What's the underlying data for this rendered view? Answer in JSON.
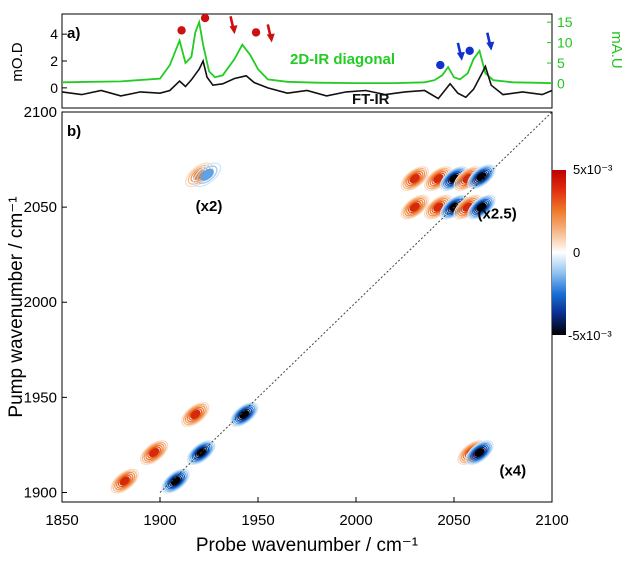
{
  "chart_data": [
    {
      "panel": "a)",
      "type": "line",
      "left_axis": {
        "label": "mO.D",
        "ticks": [
          0,
          2,
          4
        ],
        "range": [
          -1.5,
          5.5
        ]
      },
      "right_axis": {
        "label": "mA.U",
        "ticks": [
          0,
          5,
          10,
          15
        ],
        "range": [
          -6,
          17
        ],
        "color": "#22c422"
      },
      "x_axis": {
        "range": [
          1850,
          2100
        ],
        "shared_with": "b)"
      },
      "series": [
        {
          "name": "2D-IR diagonal",
          "axis": "right",
          "color": "#22cc22",
          "x": [
            1850,
            1880,
            1900,
            1905,
            1910,
            1913,
            1916,
            1918,
            1920,
            1922,
            1925,
            1928,
            1932,
            1938,
            1942,
            1946,
            1950,
            1955,
            1965,
            1980,
            2000,
            2020,
            2035,
            2040,
            2044,
            2047,
            2050,
            2053,
            2057,
            2060,
            2063,
            2066,
            2070,
            2080,
            2090,
            2100
          ],
          "y": [
            0.3,
            0.5,
            1.2,
            4.5,
            10.5,
            5.0,
            6.5,
            12.5,
            15.0,
            9.5,
            3.0,
            1.5,
            2.0,
            6.0,
            9.5,
            7.0,
            3.5,
            1.0,
            0.4,
            0.2,
            0.1,
            0.1,
            0.3,
            0.8,
            2.0,
            4.0,
            1.5,
            1.0,
            2.5,
            6.0,
            8.0,
            2.5,
            0.8,
            0.3,
            0.2,
            0.1
          ]
        },
        {
          "name": "FT-IR",
          "axis": "left",
          "color": "#111111",
          "x": [
            1850,
            1860,
            1870,
            1880,
            1890,
            1900,
            1905,
            1910,
            1913,
            1916,
            1920,
            1922,
            1924,
            1927,
            1932,
            1938,
            1944,
            1948,
            1955,
            1965,
            1975,
            1985,
            1995,
            2005,
            2015,
            2025,
            2035,
            2042,
            2048,
            2052,
            2056,
            2060,
            2064,
            2066,
            2069,
            2075,
            2085,
            2095,
            2100
          ],
          "y": [
            -0.3,
            -0.5,
            -0.2,
            -0.6,
            -0.3,
            -0.4,
            -0.2,
            0.5,
            0.1,
            0.6,
            1.4,
            2.0,
            0.8,
            0.2,
            0.3,
            0.7,
            0.9,
            0.4,
            0.0,
            -0.4,
            -0.2,
            -0.6,
            -0.3,
            -0.2,
            -0.5,
            -0.3,
            -0.2,
            -0.8,
            0.3,
            -0.4,
            -0.7,
            -0.1,
            1.0,
            1.6,
            0.2,
            -0.5,
            -0.3,
            -0.5,
            -0.2
          ]
        }
      ],
      "markers": [
        {
          "kind": "dot",
          "color": "#cc1111",
          "x": 1911,
          "y_right": 13.0
        },
        {
          "kind": "dot",
          "color": "#cc1111",
          "x": 1923,
          "y_right": 16.0
        },
        {
          "kind": "arrow",
          "color": "#cc1111",
          "x": 1937,
          "y_right": 13.5
        },
        {
          "kind": "dot",
          "color": "#cc1111",
          "x": 1949,
          "y_right": 12.5
        },
        {
          "kind": "arrow",
          "color": "#cc1111",
          "x": 1956,
          "y_right": 11.5
        },
        {
          "kind": "dot",
          "color": "#1133cc",
          "x": 2043,
          "y_right": 4.5
        },
        {
          "kind": "arrow",
          "color": "#1133cc",
          "x": 2053,
          "y_right": 7.0
        },
        {
          "kind": "dot",
          "color": "#1133cc",
          "x": 2058,
          "y_right": 8.0
        },
        {
          "kind": "arrow",
          "color": "#1133cc",
          "x": 2068,
          "y_right": 9.5
        }
      ],
      "annotations": [
        "2D-IR diagonal",
        "FT-IR"
      ]
    },
    {
      "panel": "b)",
      "type": "heatmap",
      "xlabel": "Probe wavenumber / cm⁻¹",
      "ylabel": "Pump wavenumber / cm⁻¹",
      "xlim": [
        1850,
        2100
      ],
      "ylim": [
        1895,
        2100
      ],
      "xticks": [
        "1850",
        "1900",
        "1950",
        "2000",
        "2050",
        "2100"
      ],
      "yticks": [
        "1900",
        "1950",
        "2000",
        "2050",
        "2100"
      ],
      "colorbar": {
        "max_label": "5x10⁻³",
        "mid_label": "0",
        "min_label": "-5x10⁻³",
        "range": [
          -0.005,
          0.005
        ],
        "colors": [
          "#000000",
          "#0a2a8c",
          "#1a6fd6",
          "#8ec2f0",
          "#ffffff",
          "#f6b98a",
          "#f07a2a",
          "#e03010",
          "#c00000"
        ]
      },
      "diagonal": {
        "from": [
          1900,
          1900
        ],
        "to": [
          2100,
          2100
        ],
        "style": "dotted"
      },
      "scale_labels": [
        {
          "text": "(x2)",
          "x": 1925,
          "y": 2048
        },
        {
          "text": "(x2.5)",
          "x": 2072,
          "y": 2044
        },
        {
          "text": "(x4)",
          "x": 2080,
          "y": 1909
        }
      ],
      "peaks": [
        {
          "x": 1882,
          "y": 1906,
          "sign": "positive",
          "amplitude": 0.004
        },
        {
          "x": 1897,
          "y": 1921,
          "sign": "positive",
          "amplitude": 0.004
        },
        {
          "x": 1918,
          "y": 1941,
          "sign": "positive",
          "amplitude": 0.004
        },
        {
          "x": 1908,
          "y": 1906,
          "sign": "negative",
          "amplitude": -0.005
        },
        {
          "x": 1921,
          "y": 1921,
          "sign": "negative",
          "amplitude": -0.005
        },
        {
          "x": 1943,
          "y": 1941,
          "sign": "negative",
          "amplitude": -0.005
        },
        {
          "x": 1920,
          "y": 2067,
          "sign": "positive",
          "amplitude": 0.003
        },
        {
          "x": 1924,
          "y": 2067,
          "sign": "negative",
          "amplitude": -0.002
        },
        {
          "x": 2030,
          "y": 2065,
          "sign": "positive",
          "amplitude": 0.004
        },
        {
          "x": 2030,
          "y": 2050,
          "sign": "positive",
          "amplitude": 0.004
        },
        {
          "x": 2042,
          "y": 2065,
          "sign": "positive",
          "amplitude": 0.004
        },
        {
          "x": 2042,
          "y": 2050,
          "sign": "positive",
          "amplitude": 0.004
        },
        {
          "x": 2050,
          "y": 2065,
          "sign": "negative",
          "amplitude": -0.005
        },
        {
          "x": 2050,
          "y": 2050,
          "sign": "negative",
          "amplitude": -0.005
        },
        {
          "x": 2057,
          "y": 2065,
          "sign": "positive",
          "amplitude": 0.004
        },
        {
          "x": 2057,
          "y": 2050,
          "sign": "positive",
          "amplitude": 0.004
        },
        {
          "x": 2064,
          "y": 2066,
          "sign": "negative",
          "amplitude": -0.005
        },
        {
          "x": 2064,
          "y": 2050,
          "sign": "negative",
          "amplitude": -0.005
        },
        {
          "x": 2059,
          "y": 1921,
          "sign": "positive",
          "amplitude": 0.004
        },
        {
          "x": 2063,
          "y": 1921,
          "sign": "negative",
          "amplitude": -0.005
        }
      ]
    }
  ]
}
